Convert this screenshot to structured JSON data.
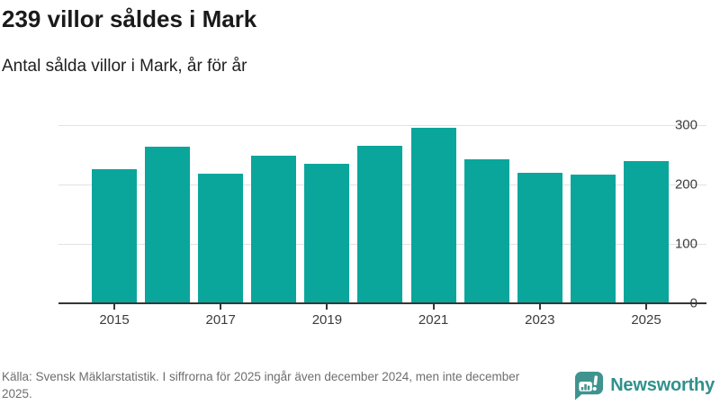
{
  "header": {
    "title": "239 villor såldes i Mark",
    "subtitle": "Antal sålda villor i Mark, år för år"
  },
  "chart_data": {
    "type": "bar",
    "title": "239 villor såldes i Mark",
    "subtitle": "Antal sålda villor i Mark, år för år",
    "categories": [
      "2015",
      "2016",
      "2017",
      "2018",
      "2019",
      "2020",
      "2021",
      "2022",
      "2023",
      "2024",
      "2025"
    ],
    "values": [
      226,
      264,
      218,
      249,
      235,
      265,
      295,
      243,
      220,
      216,
      239
    ],
    "xtick_labels": [
      "2015",
      "2017",
      "2019",
      "2021",
      "2023",
      "2025"
    ],
    "yticks": [
      300,
      200,
      100,
      0
    ],
    "ylim": [
      0,
      300
    ],
    "xlabel": "",
    "ylabel": "",
    "grid": "horizontal",
    "legend": "none",
    "bar_color": "#0aa69c"
  },
  "footer": {
    "source": "Källa: Svensk Mäklarstatistik. I siffrorna för 2025 ingår även december 2024, men inte december 2025.",
    "brand": "Newsworthy"
  },
  "colors": {
    "bar": "#0aa69c",
    "brand_badge": "#3f948f",
    "brand_text": "#2f918c",
    "axis_line": "#363636",
    "gridline": "#e2e2e2",
    "footer_text": "#6e6e6e"
  }
}
